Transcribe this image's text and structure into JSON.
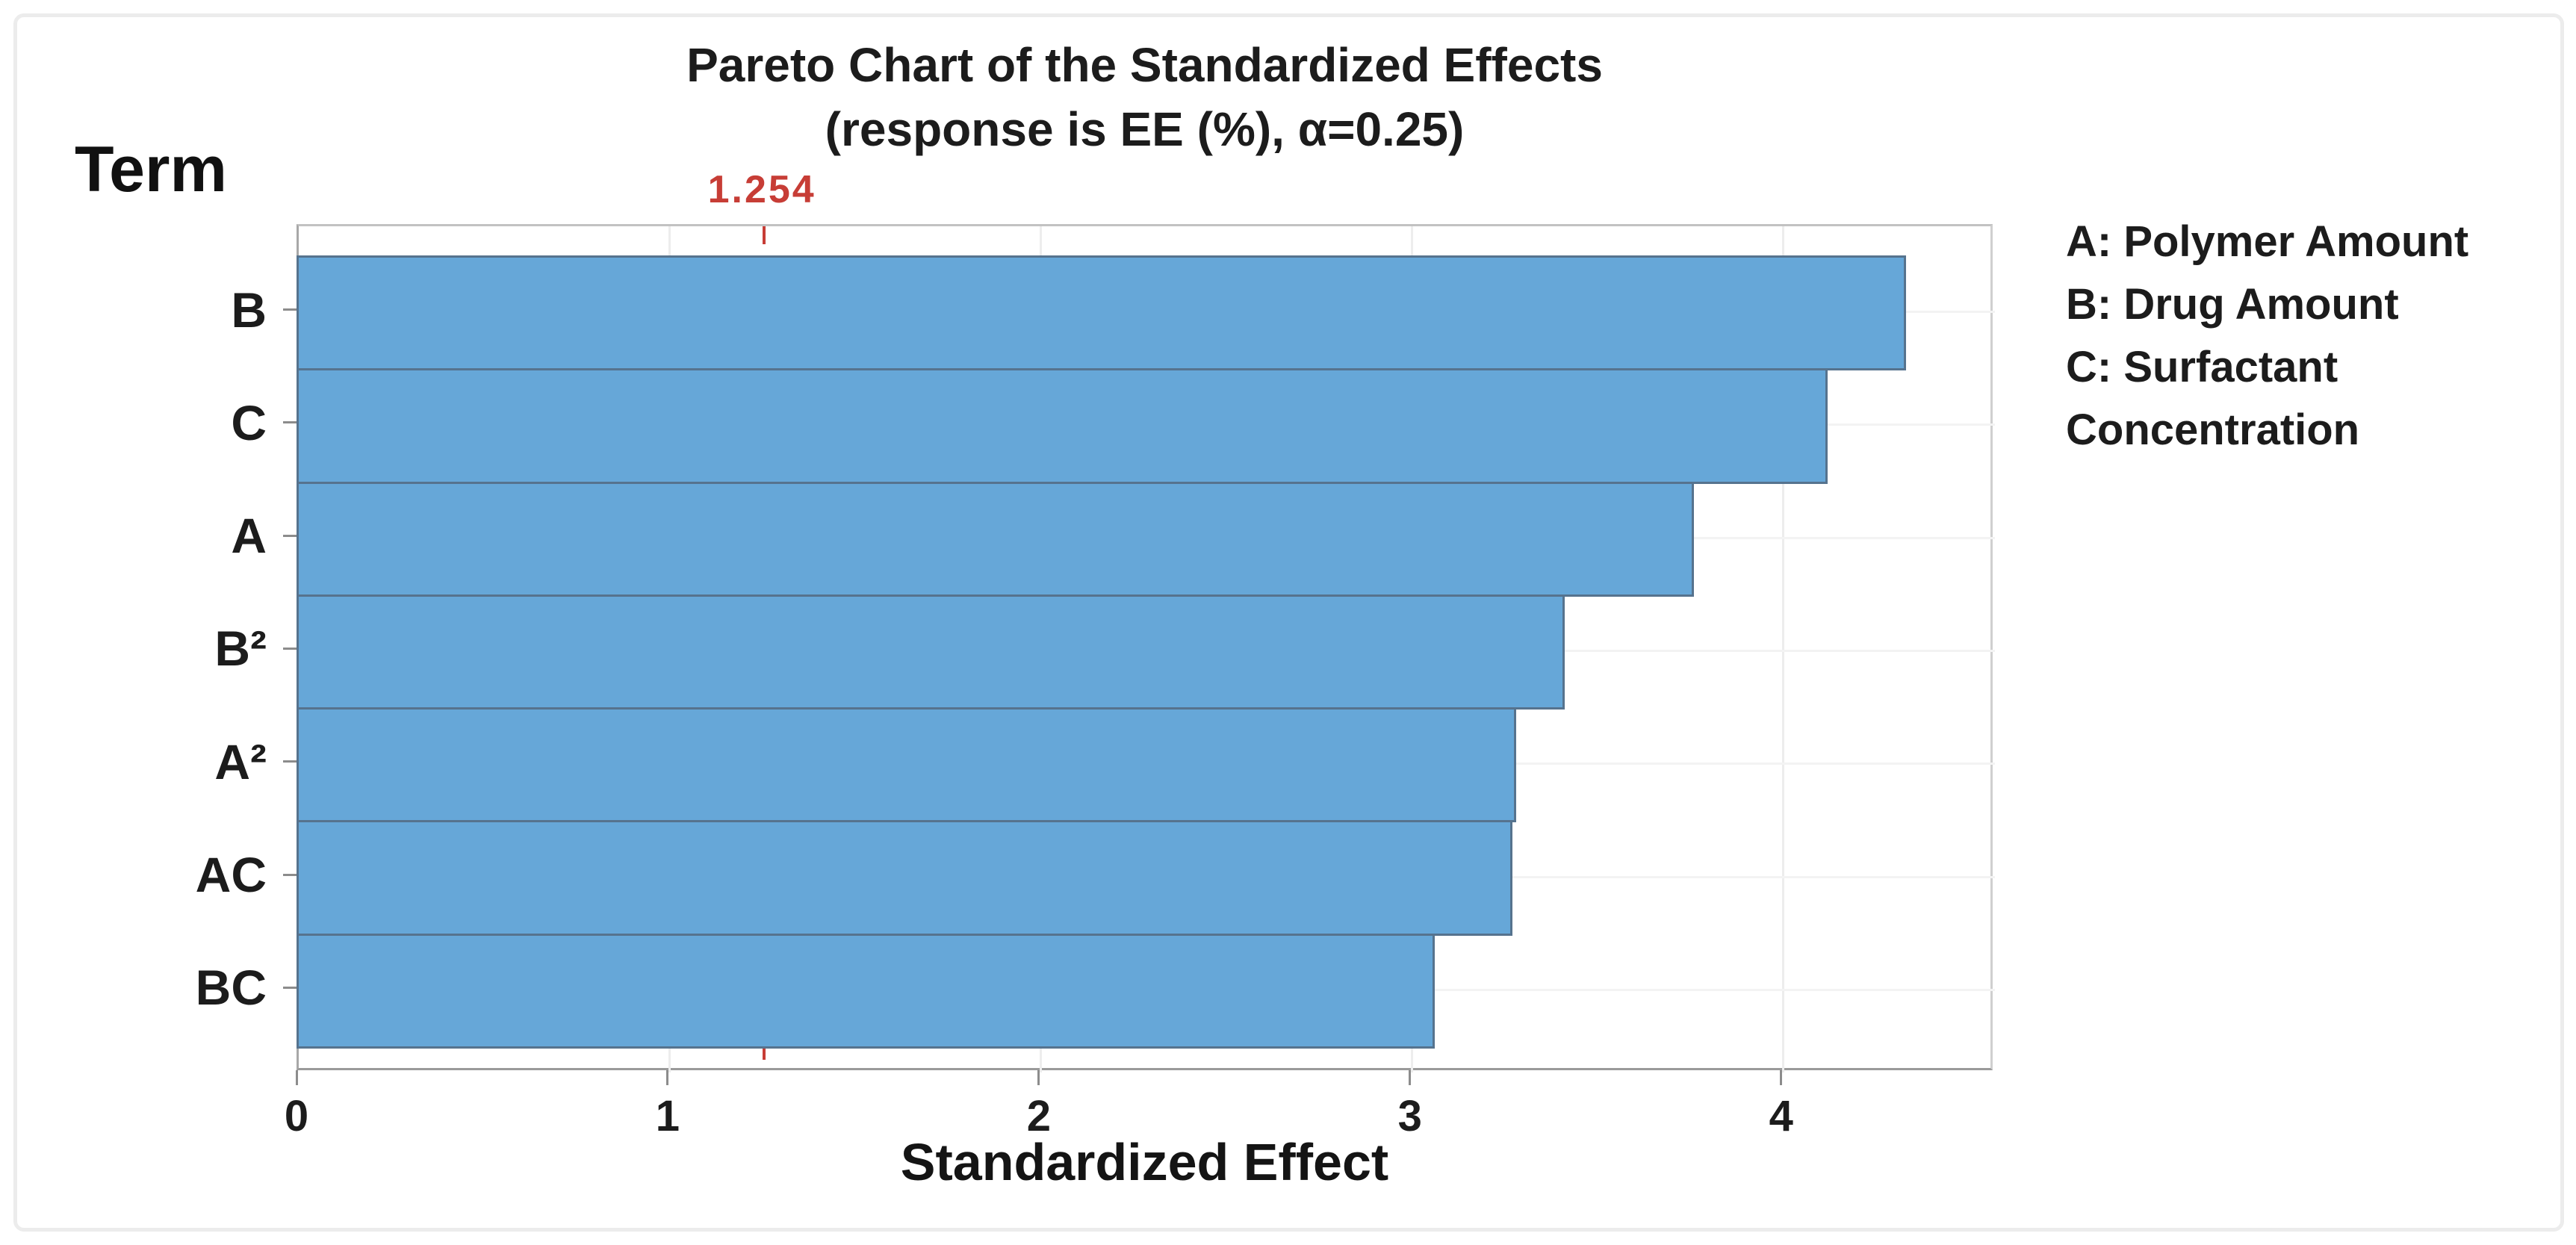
{
  "chart_data": {
    "type": "bar",
    "orientation": "horizontal",
    "title": "Pareto Chart of the Standardized Effects",
    "subtitle": "(response is EE (%), α=0.25)",
    "ylabel": "Term",
    "xlabel": "Standardized Effect",
    "categories": [
      "B",
      "C",
      "A",
      "B²",
      "A²",
      "AC",
      "BC"
    ],
    "values": [
      4.33,
      4.12,
      3.76,
      3.41,
      3.28,
      3.27,
      3.06
    ],
    "x_ticks": [
      0,
      1,
      2,
      3,
      4
    ],
    "xlim": [
      0,
      4.57
    ],
    "reference_line": {
      "value": 1.254,
      "label": "1.254"
    },
    "legend": [
      "A: Polymer Amount",
      "B: Drug Amount",
      "C: Surfactant Concentration"
    ],
    "legend_position": "right",
    "grid": true,
    "colors": {
      "bar_fill": "#66a7d8",
      "bar_border": "#56738e",
      "reference_red": "#c73d36",
      "grid_vertical": "#ededed",
      "grid_horizontal": "#f3f3f3",
      "tick": "#8c8c8c",
      "text": "#1c1c1c"
    }
  }
}
